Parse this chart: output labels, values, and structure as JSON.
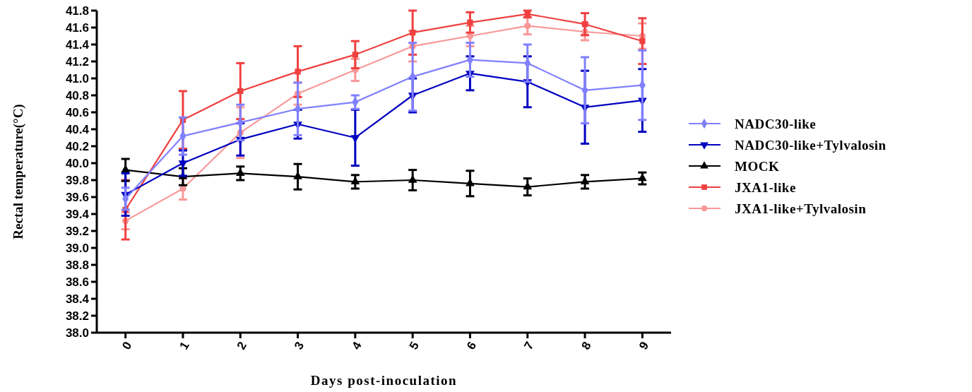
{
  "chart_data": {
    "type": "line",
    "xlabel": "Days post-inoculation",
    "ylabel": "Rectal temperature(°C)",
    "x": [
      0,
      1,
      2,
      3,
      4,
      5,
      6,
      7,
      8,
      9
    ],
    "xlim": [
      -0.5,
      9.5
    ],
    "xticks": [
      0,
      1,
      2,
      3,
      4,
      5,
      6,
      7,
      8,
      9
    ],
    "ylim": [
      38.0,
      41.8
    ],
    "yticks": [
      {
        "value": 38.0,
        "label": "38.0"
      },
      38.2,
      38.4,
      38.6,
      38.8,
      {
        "value": 39.0,
        "label": "39.0"
      },
      39.2,
      39.4,
      39.6,
      39.8,
      {
        "value": 40.0,
        "label": "40.0"
      },
      40.2,
      40.4,
      40.6,
      40.8,
      {
        "value": 41.0,
        "label": "41.0"
      },
      41.2,
      41.4,
      41.6,
      41.8
    ],
    "grid": false,
    "legend": "right",
    "line_style": "solid",
    "series": [
      {
        "name": "NADC30-like",
        "color": "#8080ff",
        "marker": "diamond",
        "values": [
          39.58,
          40.32,
          40.48,
          40.64,
          40.72,
          41.02,
          41.22,
          41.18,
          40.86,
          40.92
        ],
        "errors": [
          0.13,
          0.22,
          0.21,
          0.31,
          0.08,
          0.4,
          0.2,
          0.22,
          0.39,
          0.41
        ]
      },
      {
        "name": "NADC30-like+Tylvalosin",
        "color": "#0000c0",
        "marker": "triangle-down",
        "values": [
          39.63,
          40.0,
          40.28,
          40.46,
          40.3,
          40.8,
          41.06,
          40.96,
          40.66,
          40.74
        ],
        "errors": [
          0.25,
          0.15,
          0.19,
          0.17,
          0.33,
          0.2,
          0.2,
          0.3,
          0.43,
          0.37
        ]
      },
      {
        "name": "MOCK",
        "color": "#000000",
        "marker": "triangle",
        "values": [
          39.92,
          39.84,
          39.88,
          39.84,
          39.78,
          39.8,
          39.76,
          39.72,
          39.78,
          39.82
        ],
        "errors": [
          0.13,
          0.1,
          0.08,
          0.15,
          0.08,
          0.12,
          0.15,
          0.1,
          0.08,
          0.07
        ]
      },
      {
        "name": "JXA1-like",
        "color": "#f04040",
        "marker": "square",
        "values": [
          39.45,
          40.51,
          40.85,
          41.08,
          41.28,
          41.54,
          41.66,
          41.76,
          41.64,
          41.44
        ],
        "errors": [
          0.35,
          0.34,
          0.33,
          0.3,
          0.16,
          0.26,
          0.12,
          0.04,
          0.13,
          0.27
        ]
      },
      {
        "name": "JXA1-like+Tylvalosin",
        "color": "#f89898",
        "marker": "circle",
        "values": [
          39.32,
          39.7,
          40.36,
          40.82,
          41.1,
          41.38,
          41.5,
          41.62,
          41.55,
          41.5
        ],
        "errors": [
          0.1,
          0.13,
          0.3,
          0.13,
          0.13,
          0.18,
          0.12,
          0.1,
          0.1,
          0.15
        ]
      }
    ]
  }
}
